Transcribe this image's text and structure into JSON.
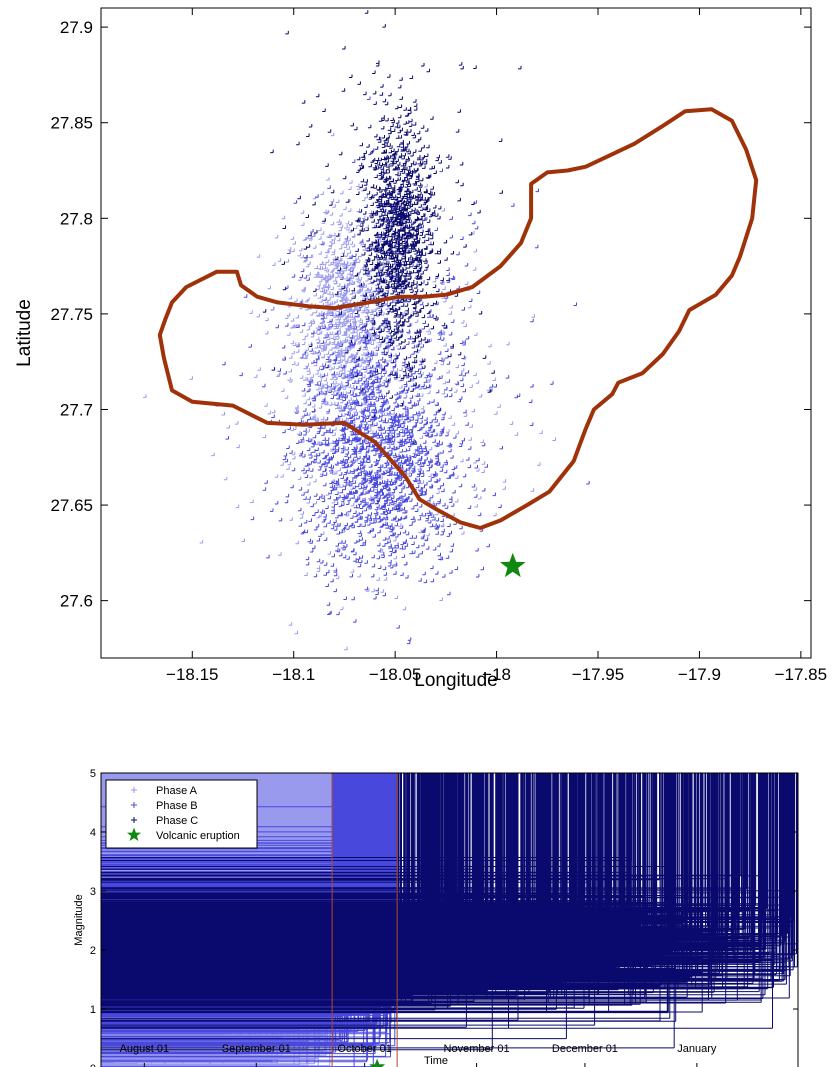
{
  "chart_data": [
    {
      "type": "scatter",
      "title": "",
      "xlabel": "Longitude",
      "ylabel": "Latitude",
      "xlim": [
        -18.195,
        -17.845
      ],
      "ylim": [
        27.57,
        27.91
      ],
      "xticks": [
        -18.15,
        -18.1,
        -18.05,
        -18,
        -17.95,
        -17.9,
        -17.85
      ],
      "xtick_labels": [
        "−18.15",
        "−18.1",
        "−18.05",
        "−18",
        "−17.95",
        "−17.9",
        "−17.85"
      ],
      "yticks": [
        27.6,
        27.65,
        27.7,
        27.75,
        27.8,
        27.85,
        27.9
      ],
      "ytick_labels": [
        "27.6",
        "27.65",
        "27.7",
        "27.75",
        "27.8",
        "27.85",
        "27.9"
      ],
      "grid": false,
      "series": [
        {
          "name": "Phase A",
          "color": "#9999ee",
          "marker": "plus",
          "clusters": [
            {
              "center": [
                -18.075,
                27.745
              ],
              "spread": [
                0.012,
                0.03
              ],
              "count": 900
            },
            {
              "center": [
                -18.06,
                27.7
              ],
              "spread": [
                0.03,
                0.04
              ],
              "count": 500
            }
          ]
        },
        {
          "name": "Phase B",
          "color": "#4848dd",
          "marker": "plus",
          "clusters": [
            {
              "center": [
                -18.06,
                27.68
              ],
              "spread": [
                0.018,
                0.025
              ],
              "count": 1100
            },
            {
              "center": [
                -18.055,
                27.64
              ],
              "spread": [
                0.02,
                0.02
              ],
              "count": 300
            },
            {
              "center": [
                -18.05,
                27.73
              ],
              "spread": [
                0.03,
                0.04
              ],
              "count": 350
            }
          ]
        },
        {
          "name": "Phase C",
          "color": "#0a0a6e",
          "marker": "plus",
          "clusters": [
            {
              "center": [
                -18.048,
                27.79
              ],
              "spread": [
                0.008,
                0.03
              ],
              "count": 1100
            },
            {
              "center": [
                -18.05,
                27.8
              ],
              "spread": [
                0.025,
                0.045
              ],
              "count": 250
            }
          ]
        }
      ],
      "boundary": {
        "color": "#a0320a",
        "lon": [
          -18.164,
          -18.166,
          -18.163,
          -18.16,
          -18.153,
          -18.138,
          -18.128,
          -18.126,
          -18.118,
          -18.108,
          -18.093,
          -18.08,
          -18.063,
          -18.048,
          -18.036,
          -18.025,
          -18.012,
          -17.998,
          -17.988,
          -17.983,
          -17.983,
          -17.975,
          -17.965,
          -17.956,
          -17.944,
          -17.932,
          -17.917,
          -17.907,
          -17.894,
          -17.884,
          -17.877,
          -17.872,
          -17.874,
          -17.88,
          -17.884,
          -17.892,
          -17.905,
          -17.91,
          -17.918,
          -17.928,
          -17.94,
          -17.943,
          -17.952,
          -17.956,
          -17.962,
          -17.974,
          -17.985,
          -17.998,
          -18.008,
          -18.018,
          -18.03,
          -18.038,
          -18.045,
          -18.06,
          -18.075,
          -18.095,
          -18.113,
          -18.13,
          -18.15,
          -18.16,
          -18.164
        ],
        "lat": [
          27.727,
          27.739,
          27.748,
          27.756,
          27.764,
          27.772,
          27.772,
          27.765,
          27.759,
          27.756,
          27.754,
          27.753,
          27.756,
          27.759,
          27.759,
          27.76,
          27.764,
          27.775,
          27.787,
          27.8,
          27.818,
          27.824,
          27.825,
          27.827,
          27.833,
          27.839,
          27.849,
          27.856,
          27.857,
          27.851,
          27.836,
          27.82,
          27.8,
          27.78,
          27.77,
          27.76,
          27.752,
          27.741,
          27.729,
          27.719,
          27.714,
          27.708,
          27.7,
          27.69,
          27.673,
          27.657,
          27.65,
          27.642,
          27.638,
          27.641,
          27.648,
          27.653,
          27.665,
          27.683,
          27.693,
          27.692,
          27.693,
          27.702,
          27.704,
          27.71,
          27.727
        ]
      },
      "eruption": {
        "lon": -17.992,
        "lat": 27.618,
        "color": "#118811"
      }
    },
    {
      "type": "scatter",
      "title": "",
      "xlabel": "Time",
      "ylabel": "Magnitude",
      "xlim": [
        "2011-07-20",
        "2012-01-29"
      ],
      "ylim": [
        0,
        5
      ],
      "xticks": [
        "2011-08-01",
        "2011-09-01",
        "2011-10-01",
        "2011-11-01",
        "2011-12-01",
        "2012-01-01"
      ],
      "xtick_labels": [
        "August 01",
        "September 01",
        "October 01",
        "November 01",
        "December 01",
        "January"
      ],
      "yticks": [
        0,
        1,
        2,
        3,
        4,
        5
      ],
      "ytick_labels": [
        "0",
        "1",
        "2",
        "3",
        "4",
        "5"
      ],
      "grid": false,
      "phase_boundaries": [
        "2011-09-22",
        "2011-10-10"
      ],
      "phase_boundary_color": "#b04a2a",
      "series": [
        {
          "name": "Phase A",
          "color": "#9999ee",
          "range": [
            "2011-07-20",
            "2011-09-22"
          ],
          "magnitude_mean": 1.3,
          "magnitude_spread": 0.55,
          "count": 1800
        },
        {
          "name": "Phase B",
          "color": "#4848dd",
          "range": [
            "2011-09-22",
            "2011-10-10"
          ],
          "magnitude_mean": 2.0,
          "magnitude_spread": 0.75,
          "count": 900
        },
        {
          "name": "Phase C",
          "color": "#0a0a6e",
          "range": [
            "2011-10-10",
            "2012-01-29"
          ],
          "magnitude_mean": 2.0,
          "magnitude_spread": 0.5,
          "count": 900
        }
      ],
      "eruption": {
        "date": "2011-10-10",
        "magnitude": 0,
        "color": "#118811"
      },
      "legend": {
        "placement": "top-left",
        "entries": [
          {
            "label": "Phase A",
            "color": "#9999ee",
            "marker": "plus"
          },
          {
            "label": "Phase B",
            "color": "#4848dd",
            "marker": "plus"
          },
          {
            "label": "Phase C",
            "color": "#0a0a6e",
            "marker": "plus"
          },
          {
            "label": "Volcanic eruption",
            "color": "#118811",
            "marker": "star"
          }
        ]
      }
    }
  ]
}
